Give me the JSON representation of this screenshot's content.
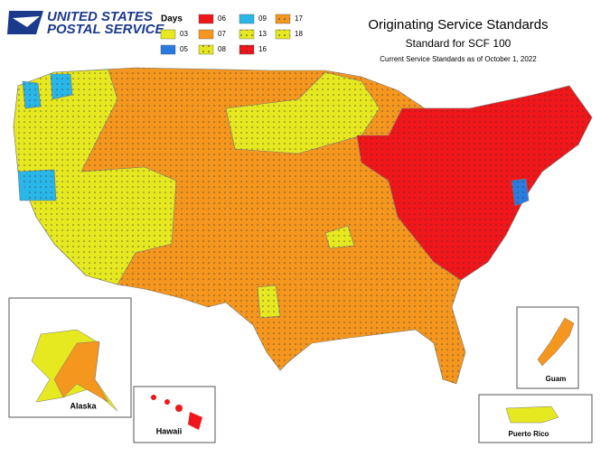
{
  "logo": {
    "line1": "UNITED STATES",
    "line2": "POSTAL SERVICE"
  },
  "legend": {
    "title": "Days",
    "entries": [
      {
        "label": "06",
        "color": "#f0161a",
        "dotted": false
      },
      {
        "label": "09",
        "color": "#29b6e8",
        "dotted": false
      },
      {
        "label": "17",
        "color": "#f5961e",
        "dotted": true
      },
      {
        "label": "03",
        "color": "#e6e820",
        "dotted": false
      },
      {
        "label": "07",
        "color": "#f5961e",
        "dotted": false
      },
      {
        "label": "13",
        "color": "#e6e820",
        "dotted": true
      },
      {
        "label": "18",
        "color": "#e6e820",
        "dotted": true
      },
      {
        "label": "05",
        "color": "#2a7be0",
        "dotted": false
      },
      {
        "label": "08",
        "color": "#e6e820",
        "dotted": true
      },
      {
        "label": "16",
        "color": "#f0161a",
        "dotted": true
      }
    ]
  },
  "title": "Originating Service Standards",
  "subtitle": "Standard for SCF 100",
  "note": "Current Service Standards as of October 1, 2022",
  "insets": {
    "alaska": "Alaska",
    "hawaii": "Hawaii",
    "guam": "Guam",
    "puerto_rico": "Puerto Rico"
  }
}
